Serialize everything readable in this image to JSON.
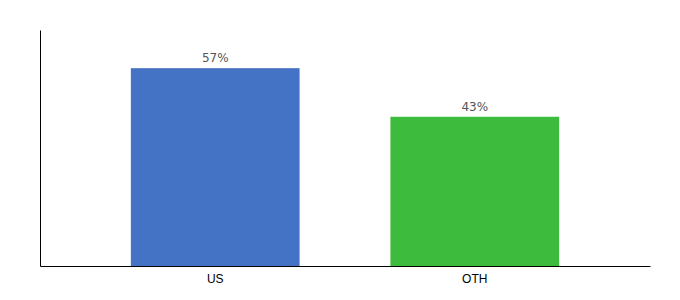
{
  "chart_data": {
    "type": "bar",
    "categories": [
      "US",
      "OTH"
    ],
    "values": [
      57,
      43
    ],
    "value_labels": [
      "57%",
      "43%"
    ],
    "colors": [
      "#4472C4",
      "#3CBB3C"
    ],
    "ylim": [
      0,
      68
    ],
    "data_labels": true,
    "tick_labels": "x"
  }
}
